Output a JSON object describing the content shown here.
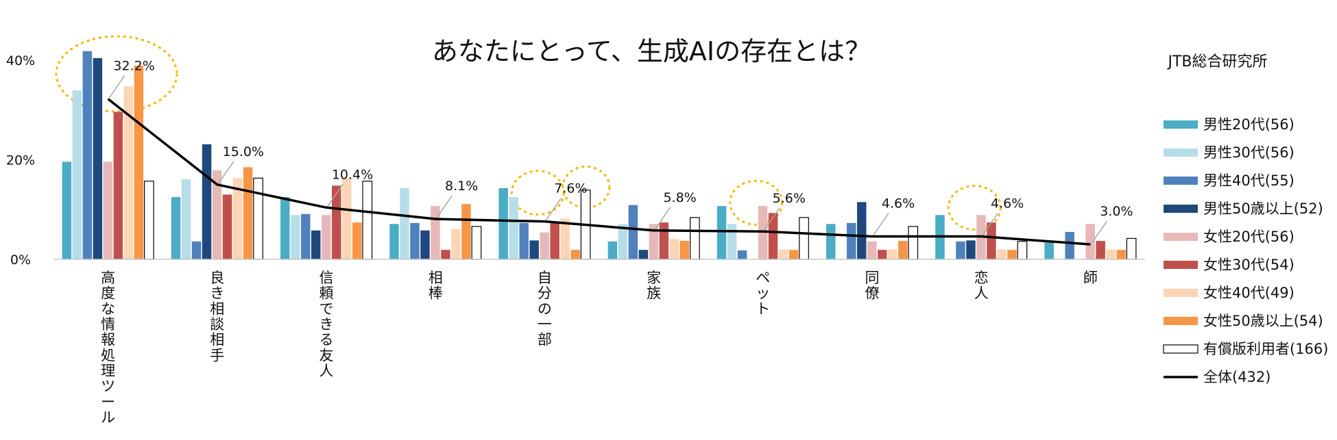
{
  "chart_data": {
    "type": "bar",
    "title": "あなたにとって、生成AIの存在とは？",
    "source": "JTB総合研究所",
    "ylim": [
      0,
      40
    ],
    "yticks": [
      0,
      20,
      40
    ],
    "ytick_labels": [
      "0%",
      "20%",
      "40%"
    ],
    "grid": false,
    "legend_position": "right",
    "categories": [
      "高度な情報処理ツール",
      "良き相談相手",
      "信頼できる友人",
      "相棒",
      "自分の一部",
      "家族",
      "ペット",
      "同僚",
      "恋人",
      "師"
    ],
    "series": [
      {
        "name": "男性20代(56)",
        "color": "#4bacc6",
        "values": [
          19.6,
          12.5,
          12.5,
          7.1,
          14.3,
          3.6,
          10.7,
          7.1,
          8.9,
          3.6
        ]
      },
      {
        "name": "男性30代(56)",
        "color": "#b7dde8",
        "values": [
          33.9,
          16.1,
          8.9,
          14.3,
          12.5,
          7.1,
          7.1,
          0,
          0,
          0
        ]
      },
      {
        "name": "男性40代(55)",
        "color": "#4f81bd",
        "values": [
          41.8,
          3.6,
          9.1,
          7.3,
          7.3,
          10.9,
          1.8,
          7.3,
          3.6,
          5.5
        ]
      },
      {
        "name": "男性50歳以上(52)",
        "color": "#1f497d",
        "values": [
          40.4,
          23.1,
          5.8,
          5.8,
          3.8,
          1.9,
          0,
          11.5,
          3.8,
          0
        ]
      },
      {
        "name": "女性20代(56)",
        "color": "#e6b9b8",
        "values": [
          19.6,
          17.9,
          8.9,
          10.7,
          5.4,
          7.1,
          10.7,
          3.6,
          8.9,
          7.1
        ]
      },
      {
        "name": "女性30代(54)",
        "color": "#c0504d",
        "values": [
          29.6,
          13.0,
          14.8,
          1.9,
          7.4,
          7.4,
          9.3,
          1.9,
          7.4,
          3.7
        ]
      },
      {
        "name": "女性40代(49)",
        "color": "#fcd5b5",
        "values": [
          34.7,
          16.3,
          16.3,
          6.1,
          8.2,
          4.1,
          2.0,
          2.0,
          2.0,
          2.0
        ]
      },
      {
        "name": "女性50歳以上(54)",
        "color": "#f79646",
        "values": [
          38.9,
          18.5,
          7.4,
          11.1,
          1.9,
          3.7,
          1.9,
          3.7,
          1.9,
          1.9
        ]
      },
      {
        "name": "有償版利用者(166)",
        "color": "#ffffff",
        "values": [
          15.7,
          16.3,
          15.7,
          6.6,
          13.9,
          8.4,
          8.4,
          6.6,
          3.6,
          4.2
        ]
      }
    ],
    "line": {
      "name": "全体(432)",
      "color": "#000000",
      "values": [
        32.2,
        15.0,
        10.4,
        8.1,
        7.6,
        5.8,
        5.6,
        4.6,
        4.6,
        3.0
      ],
      "labels": [
        "32.2%",
        "15.0%",
        "10.4%",
        "8.1%",
        "7.6%",
        "5.8%",
        "5.6%",
        "4.6%",
        "4.6%",
        "3.0%"
      ]
    },
    "highlights": [
      {
        "category": "高度な情報処理ツール",
        "note": "circled"
      },
      {
        "category": "自分の一部",
        "note": "circled"
      },
      {
        "category": "ペット",
        "note": "circled"
      },
      {
        "category": "恋人",
        "note": "circled"
      }
    ]
  }
}
